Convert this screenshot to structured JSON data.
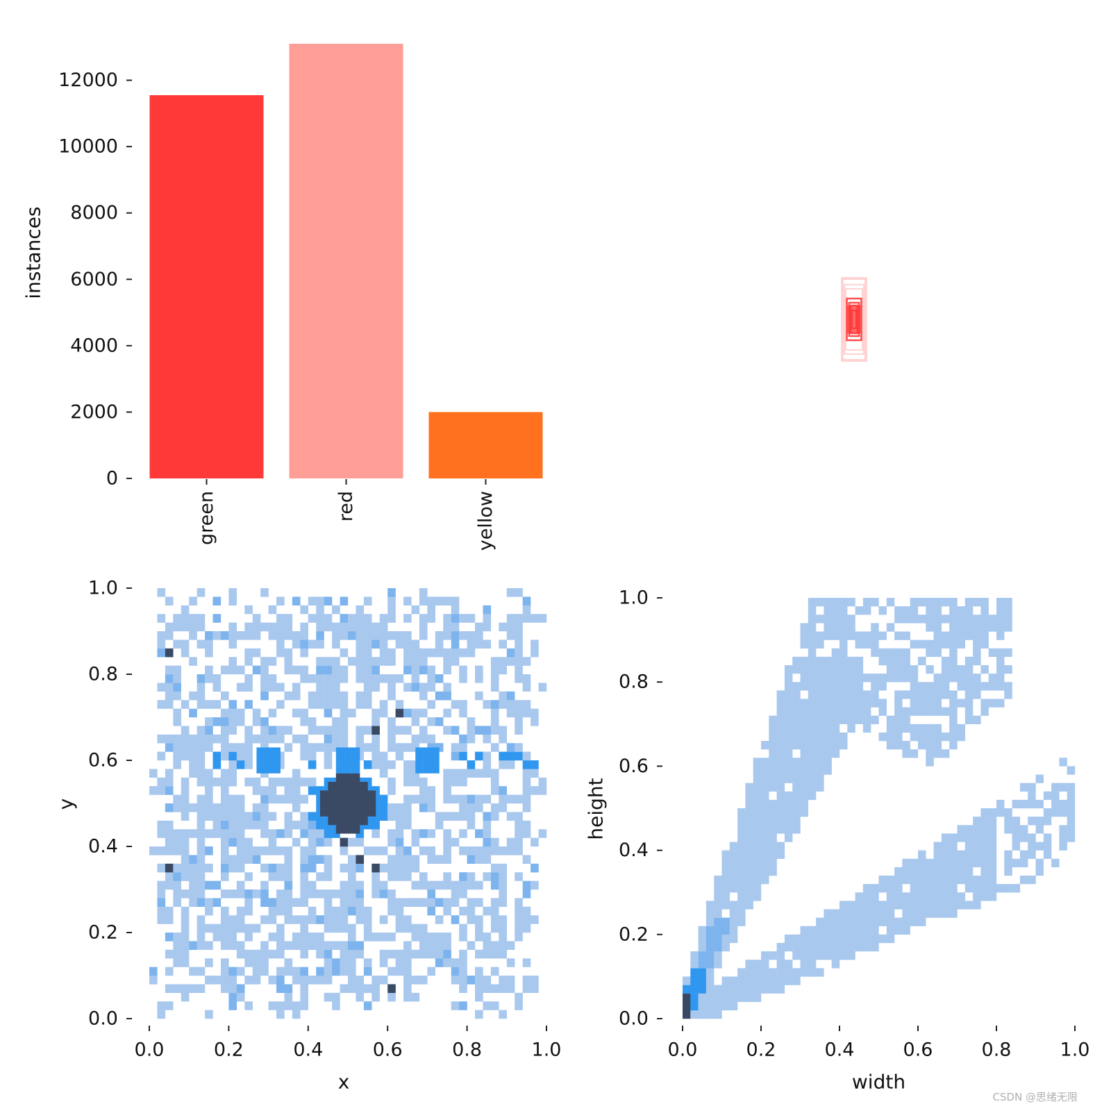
{
  "colors": {
    "green": "#ff3838",
    "red": "#ff9d97",
    "yellow": "#ff701f",
    "hist_light": "#a9c8ee",
    "hist_mid": "#2f97ef",
    "hist_dark": "#3a4a64"
  },
  "chart_data": [
    {
      "type": "bar",
      "categories": [
        "green",
        "red",
        "yellow"
      ],
      "values": [
        11550,
        13100,
        2000
      ],
      "ylabel": "instances",
      "ylim": [
        0,
        13100
      ],
      "yticks": [
        "0",
        "2000",
        "4000",
        "6000",
        "8000",
        "10000",
        "12000"
      ],
      "xtick_rotation": "vertical",
      "grid": false
    },
    {
      "type": "boxes",
      "description_label": "",
      "center": [
        0.5,
        0.5
      ],
      "boxes": [
        {
          "w": 0.008,
          "h": 0.032
        },
        {
          "w": 0.012,
          "h": 0.05
        },
        {
          "w": 0.018,
          "h": 0.06
        },
        {
          "w": 0.026,
          "h": 0.075
        },
        {
          "w": 0.03,
          "h": 0.11
        },
        {
          "w": 0.035,
          "h": 0.125
        },
        {
          "w": 0.04,
          "h": 0.145
        },
        {
          "w": 0.045,
          "h": 0.15
        }
      ],
      "grid": false
    },
    {
      "type": "heatmap",
      "xlabel": "x",
      "ylabel": "y",
      "xlim": [
        0.0,
        1.0
      ],
      "ylim": [
        0.0,
        1.0
      ],
      "xticks": [
        "0.0",
        "0.2",
        "0.4",
        "0.6",
        "0.8",
        "1.0"
      ],
      "yticks": [
        "0.0",
        "0.2",
        "0.4",
        "0.6",
        "0.8",
        "1.0"
      ],
      "bins": 50,
      "hotspots": [
        {
          "x": 0.5,
          "y": 0.5,
          "level": "high"
        },
        {
          "x": 0.5,
          "y": 0.6,
          "level": "medium"
        },
        {
          "x": 0.3,
          "y": 0.6,
          "level": "medium"
        },
        {
          "x": 0.7,
          "y": 0.6,
          "level": "medium"
        }
      ],
      "grid": false
    },
    {
      "type": "heatmap",
      "xlabel": "width",
      "ylabel": "height",
      "xlim": [
        0.0,
        1.0
      ],
      "ylim": [
        0.0,
        1.0
      ],
      "xticks": [
        "0.0",
        "0.2",
        "0.4",
        "0.6",
        "0.8",
        "1.0"
      ],
      "yticks": [
        "0.0",
        "0.2",
        "0.4",
        "0.6",
        "0.8",
        "1.0"
      ],
      "bins": 50,
      "bands": [
        {
          "from": [
            0.0,
            0.0
          ],
          "to": [
            0.85,
            1.0
          ],
          "note": "tall boxes"
        },
        {
          "from": [
            0.05,
            0.05
          ],
          "to": [
            1.0,
            0.6
          ],
          "note": "wide boxes"
        }
      ],
      "hotspots": [
        {
          "x": 0.01,
          "y": 0.03,
          "level": "high"
        },
        {
          "x": 0.08,
          "y": 0.2,
          "level": "medium"
        }
      ],
      "grid": false
    }
  ],
  "watermark": "CSDN @思绪无限"
}
